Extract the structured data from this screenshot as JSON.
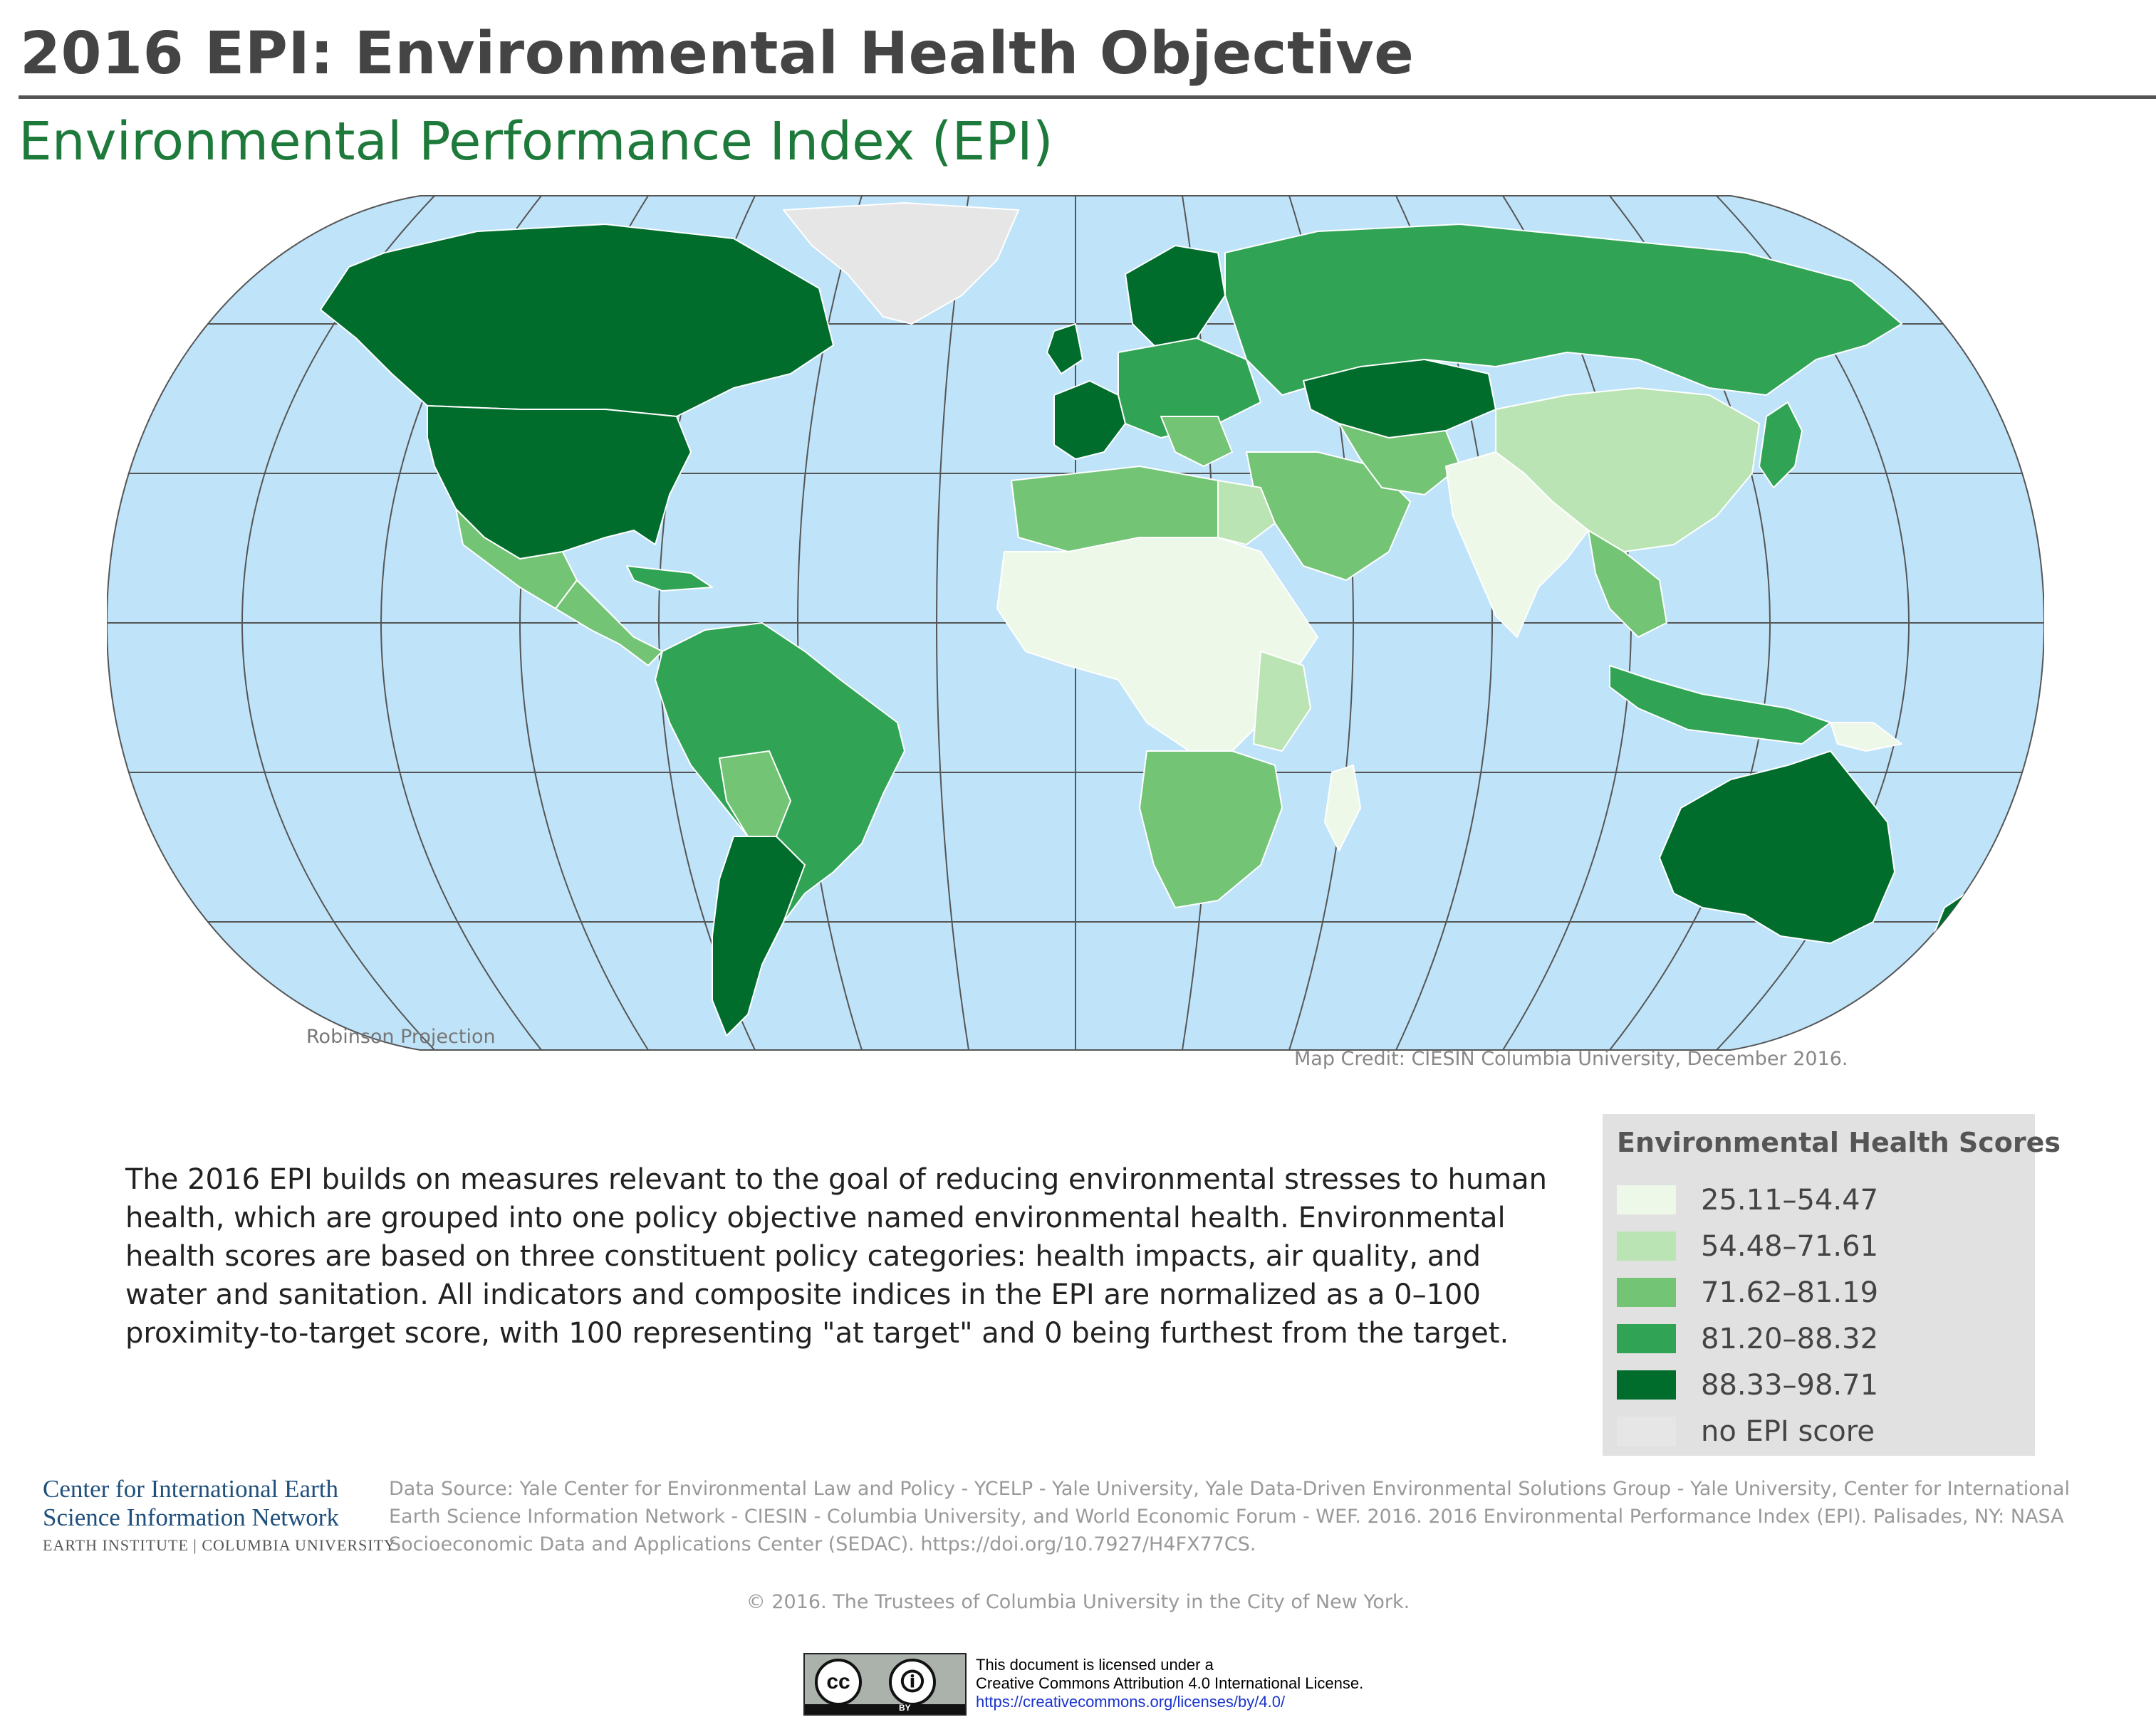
{
  "title": "2016 EPI: Environmental Health Objective",
  "subtitle": "Environmental Performance Index (EPI)",
  "map": {
    "projection_label": "Robinson Projection",
    "credit": "Map Credit: CIESIN Columbia University, December 2016.",
    "colors": {
      "ocean": "#bfe4f9",
      "graticule": "#555555",
      "border": "#ffffff"
    },
    "regions": [
      {
        "name": "Canada",
        "class": "88.33–98.71"
      },
      {
        "name": "United States",
        "class": "88.33–98.71"
      },
      {
        "name": "Mexico",
        "class": "71.62–81.19"
      },
      {
        "name": "Central America",
        "class": "71.62–81.19"
      },
      {
        "name": "Brazil",
        "class": "81.20–88.32"
      },
      {
        "name": "Argentina",
        "class": "88.33–98.71"
      },
      {
        "name": "Chile",
        "class": "88.33–98.71"
      },
      {
        "name": "Bolivia",
        "class": "71.62–81.19"
      },
      {
        "name": "Western Europe",
        "class": "88.33–98.71"
      },
      {
        "name": "Eastern Europe",
        "class": "81.20–88.32"
      },
      {
        "name": "Russia",
        "class": "81.20–88.32"
      },
      {
        "name": "Kazakhstan",
        "class": "88.33–98.71"
      },
      {
        "name": "China",
        "class": "54.48–71.61"
      },
      {
        "name": "India",
        "class": "25.11–54.47"
      },
      {
        "name": "North Africa",
        "class": "71.62–81.19"
      },
      {
        "name": "Sahel & Central Africa",
        "class": "25.11–54.47"
      },
      {
        "name": "Southern Africa",
        "class": "71.62–81.19"
      },
      {
        "name": "Middle East",
        "class": "71.62–81.19"
      },
      {
        "name": "Australia",
        "class": "88.33–98.71"
      },
      {
        "name": "New Zealand",
        "class": "88.33–98.71"
      },
      {
        "name": "Indonesia",
        "class": "81.20–88.32"
      },
      {
        "name": "Japan",
        "class": "81.20–88.32"
      },
      {
        "name": "Greenland",
        "class": "no EPI score"
      }
    ]
  },
  "description": "The 2016 EPI builds on measures relevant to the goal of reducing environmental stresses to human health, which are grouped into one policy objective named environmental health. Environmental health scores are based on three constituent policy categories: health impacts, air quality, and water and sanitation. All indicators and composite indices in the EPI are normalized as a 0–100 proximity-to-target score, with 100 representing \"at target\" and 0 being furthest from the target.",
  "legend": {
    "title": "Environmental Health Scores",
    "items": [
      {
        "label": "25.11–54.47",
        "color": "#edf8e9"
      },
      {
        "label": "54.48–71.61",
        "color": "#bae4b3"
      },
      {
        "label": "71.62–81.19",
        "color": "#74c476"
      },
      {
        "label": "81.20–88.32",
        "color": "#31a354"
      },
      {
        "label": "88.33–98.71",
        "color": "#006d2c"
      },
      {
        "label": "no EPI score",
        "color": "#e6e6e6"
      }
    ]
  },
  "logo": {
    "line1": "Center for International Earth",
    "line2": "Science Information Network",
    "line3": "EARTH INSTITUTE | COLUMBIA UNIVERSITY"
  },
  "data_source": "Data Source: Yale Center for Environmental Law and Policy - YCELP - Yale University, Yale Data-Driven Environmental Solutions Group - Yale University, Center for International Earth Science Information Network - CIESIN - Columbia University, and World Economic Forum - WEF. 2016. 2016 Environmental Performance Index (EPI). Palisades, NY: NASA Socioeconomic Data and Applications Center (SEDAC). https://doi.org/10.7927/H4FX77CS.",
  "copyright": "© 2016. The Trustees of Columbia University in the City of New York.",
  "license": {
    "badge_cc": "cc",
    "badge_by": "BY",
    "line1": "This document is licensed under a",
    "line2": "Creative Commons Attribution 4.0 International License.",
    "url": "https://creativecommons.org/licenses/by/4.0/"
  }
}
